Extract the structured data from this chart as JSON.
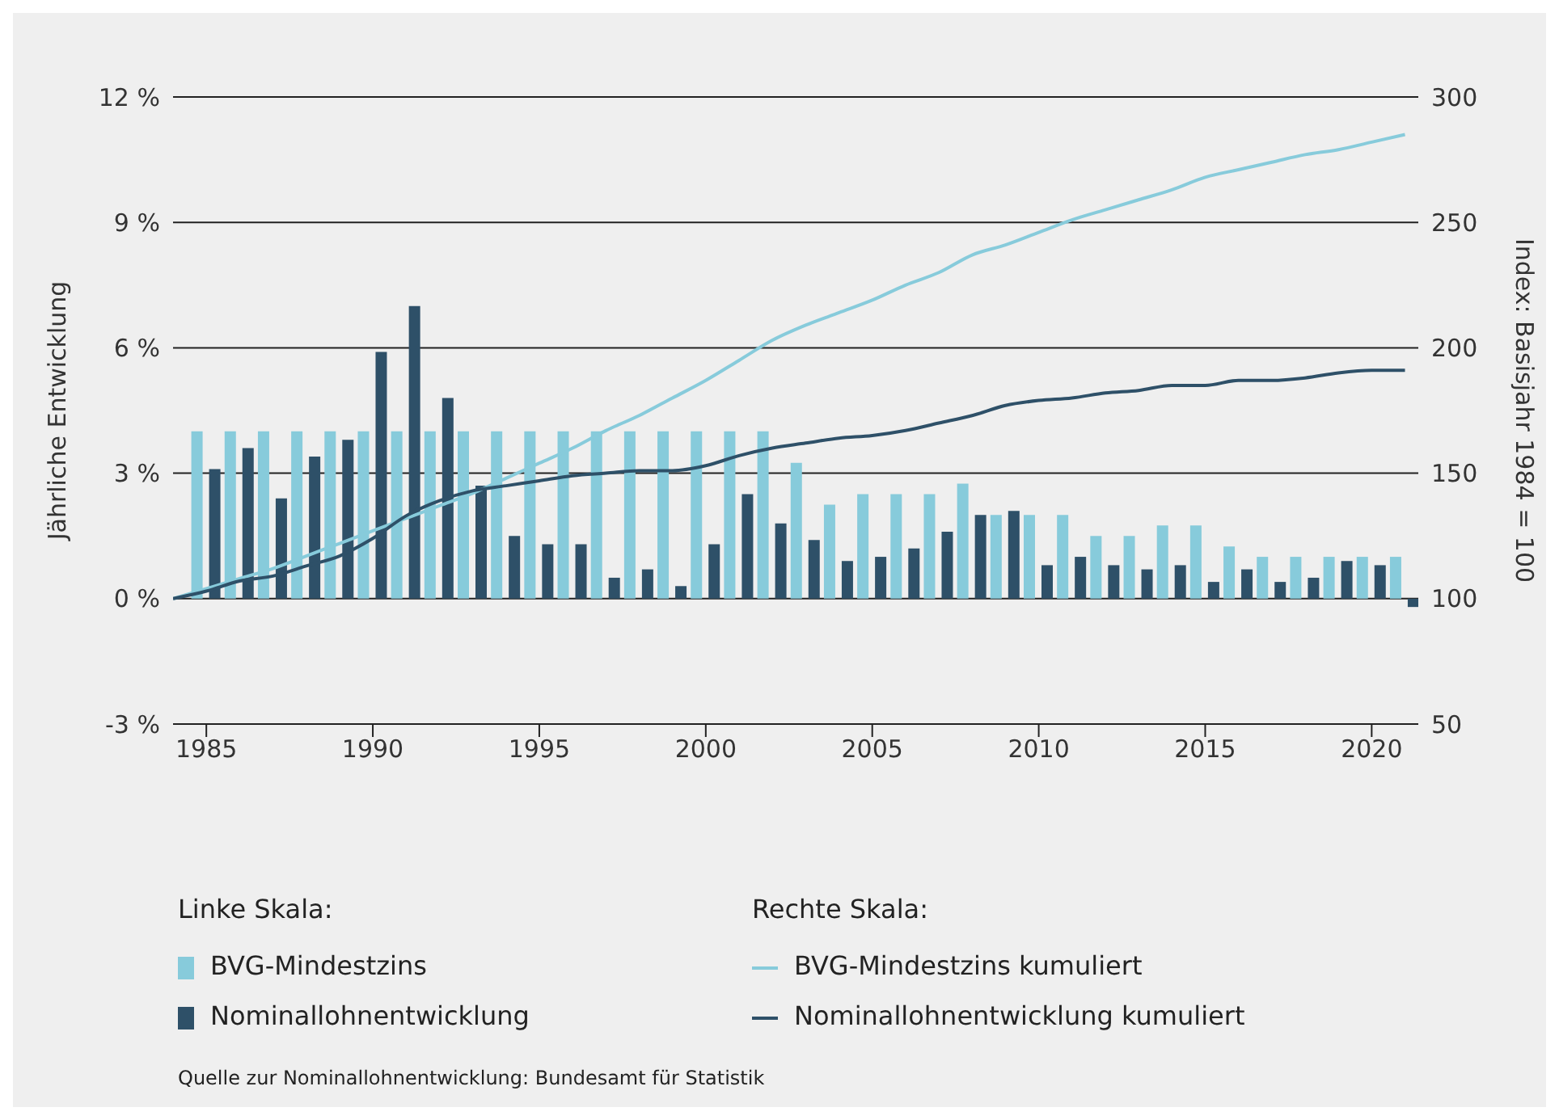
{
  "chart_data": {
    "type": "bar",
    "ylabel": "Jährliche Entwicklung",
    "y2label": "Index: Basisjahr 1984 = 100",
    "xlim": [
      1984,
      2021.4
    ],
    "xticks": [
      1985,
      1990,
      1995,
      2000,
      2005,
      2010,
      2015,
      2020
    ],
    "ylim": [
      -3,
      12
    ],
    "yticks": [
      {
        "value": -3,
        "label": "-3 %"
      },
      {
        "value": 0,
        "label": "0 %"
      },
      {
        "value": 3,
        "label": "3 %"
      },
      {
        "value": 6,
        "label": "6 %"
      },
      {
        "value": 9,
        "label": "9 %"
      },
      {
        "value": 12,
        "label": "12 %"
      }
    ],
    "y2lim": [
      50,
      300
    ],
    "y2ticks": [
      50,
      100,
      150,
      200,
      250,
      300
    ],
    "grid": "y",
    "legend": "bottom",
    "annotations": [
      "Linke Skala:",
      "Rechte Skala:",
      "Quelle zur Nominallohnentwicklung: Bundesamt für Statistik"
    ],
    "series": [
      {
        "name": "BVG-Mindestzins",
        "color": "#87cbdb",
        "x": [
          1985,
          1986,
          1987,
          1988,
          1989,
          1990,
          1991,
          1992,
          1993,
          1994,
          1995,
          1996,
          1997,
          1998,
          1999,
          2000,
          2001,
          2002,
          2003,
          2004,
          2005,
          2006,
          2007,
          2008,
          2009,
          2010,
          2011,
          2012,
          2013,
          2014,
          2015,
          2016,
          2017,
          2018,
          2019,
          2020,
          2021
        ],
        "values": [
          4,
          4,
          4,
          4,
          4,
          4,
          4,
          4,
          4,
          4,
          4,
          4,
          4,
          4,
          4,
          4,
          4,
          4,
          3.25,
          2.25,
          2.5,
          2.5,
          2.5,
          2.75,
          2,
          2,
          2,
          1.5,
          1.5,
          1.75,
          1.75,
          1.25,
          1,
          1,
          1,
          1,
          1
        ]
      },
      {
        "name": "Nominallohnentwicklung",
        "color": "#2e5068",
        "x": [
          1985,
          1986,
          1987,
          1988,
          1989,
          1990,
          1991,
          1992,
          1993,
          1994,
          1995,
          1996,
          1997,
          1998,
          1999,
          2000,
          2001,
          2002,
          2003,
          2004,
          2005,
          2006,
          2007,
          2008,
          2009,
          2010,
          2011,
          2012,
          2013,
          2014,
          2015,
          2016,
          2017,
          2018,
          2019,
          2020,
          2021
        ],
        "values": [
          3.1,
          3.6,
          2.4,
          3.4,
          3.8,
          5.9,
          7.0,
          4.8,
          2.7,
          1.5,
          1.3,
          1.3,
          0.5,
          0.7,
          0.3,
          1.3,
          2.5,
          1.8,
          1.4,
          0.9,
          1.0,
          1.2,
          1.6,
          2.0,
          2.1,
          0.8,
          1.0,
          0.8,
          0.7,
          0.8,
          0.4,
          0.7,
          0.4,
          0.5,
          0.9,
          0.8,
          -0.2
        ]
      },
      {
        "name": "BVG-Mindestzins kumuliert",
        "type": "line",
        "axis": "y2",
        "color": "#87cbdb",
        "x": [
          1984,
          1985,
          1986,
          1987,
          1988,
          1989,
          1990,
          1991,
          1992,
          1993,
          1994,
          1995,
          1996,
          1997,
          1998,
          1999,
          2000,
          2001,
          2002,
          2003,
          2004,
          2005,
          2006,
          2007,
          2008,
          2009,
          2010,
          2011,
          2012,
          2013,
          2014,
          2015,
          2016,
          2017,
          2018,
          2019,
          2020,
          2021
        ],
        "values": [
          100,
          104,
          108,
          112,
          117,
          122,
          127,
          132,
          137,
          142,
          148,
          154,
          160,
          167,
          173,
          180,
          187,
          195,
          203,
          209,
          214,
          219,
          225,
          230,
          237,
          241,
          246,
          251,
          255,
          259,
          263,
          268,
          271,
          274,
          277,
          279,
          282,
          285
        ]
      },
      {
        "name": "Nominallohnentwicklung kumuliert",
        "type": "line",
        "axis": "y2",
        "color": "#2e5068",
        "x": [
          1984,
          1985,
          1986,
          1987,
          1988,
          1989,
          1990,
          1991,
          1992,
          1993,
          1994,
          1995,
          1996,
          1997,
          1998,
          1999,
          2000,
          2001,
          2002,
          2003,
          2004,
          2005,
          2006,
          2007,
          2008,
          2009,
          2010,
          2011,
          2012,
          2013,
          2014,
          2015,
          2016,
          2017,
          2018,
          2019,
          2020,
          2021
        ],
        "values": [
          100,
          103,
          107,
          109,
          113,
          117,
          124,
          133,
          139,
          143,
          145,
          147,
          149,
          150,
          151,
          151,
          153,
          157,
          160,
          162,
          164,
          165,
          167,
          170,
          173,
          177,
          179,
          180,
          182,
          183,
          185,
          185,
          187,
          187,
          188,
          190,
          191,
          191
        ]
      }
    ]
  }
}
